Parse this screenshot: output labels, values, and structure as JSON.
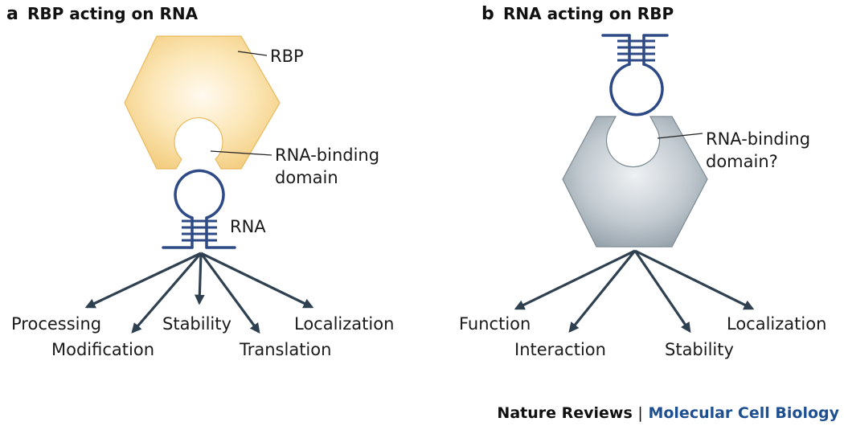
{
  "panel_a": {
    "letter": "a",
    "title": "RBP acting on RNA",
    "protein_label": "RBP",
    "domain_label_line1": "RNA-binding",
    "domain_label_line2": "domain",
    "rna_label": "RNA",
    "outcomes": [
      "Processing",
      "Modification",
      "Stability",
      "Translation",
      "Localization"
    ],
    "protein_color": "#f7d58f"
  },
  "panel_b": {
    "letter": "b",
    "title": "RNA acting on RBP",
    "domain_label_line1": "RNA-binding",
    "domain_label_line2": "domain?",
    "outcomes": [
      "Function",
      "Interaction",
      "Stability",
      "Localization"
    ],
    "protein_color": "#a8b2ba"
  },
  "credit": {
    "publisher": "Nature Reviews",
    "separator": "|",
    "journal": "Molecular Cell Biology"
  },
  "colors": {
    "rna": "#2d4a86",
    "arrow": "#2f4050",
    "journal": "#1d4f91"
  }
}
